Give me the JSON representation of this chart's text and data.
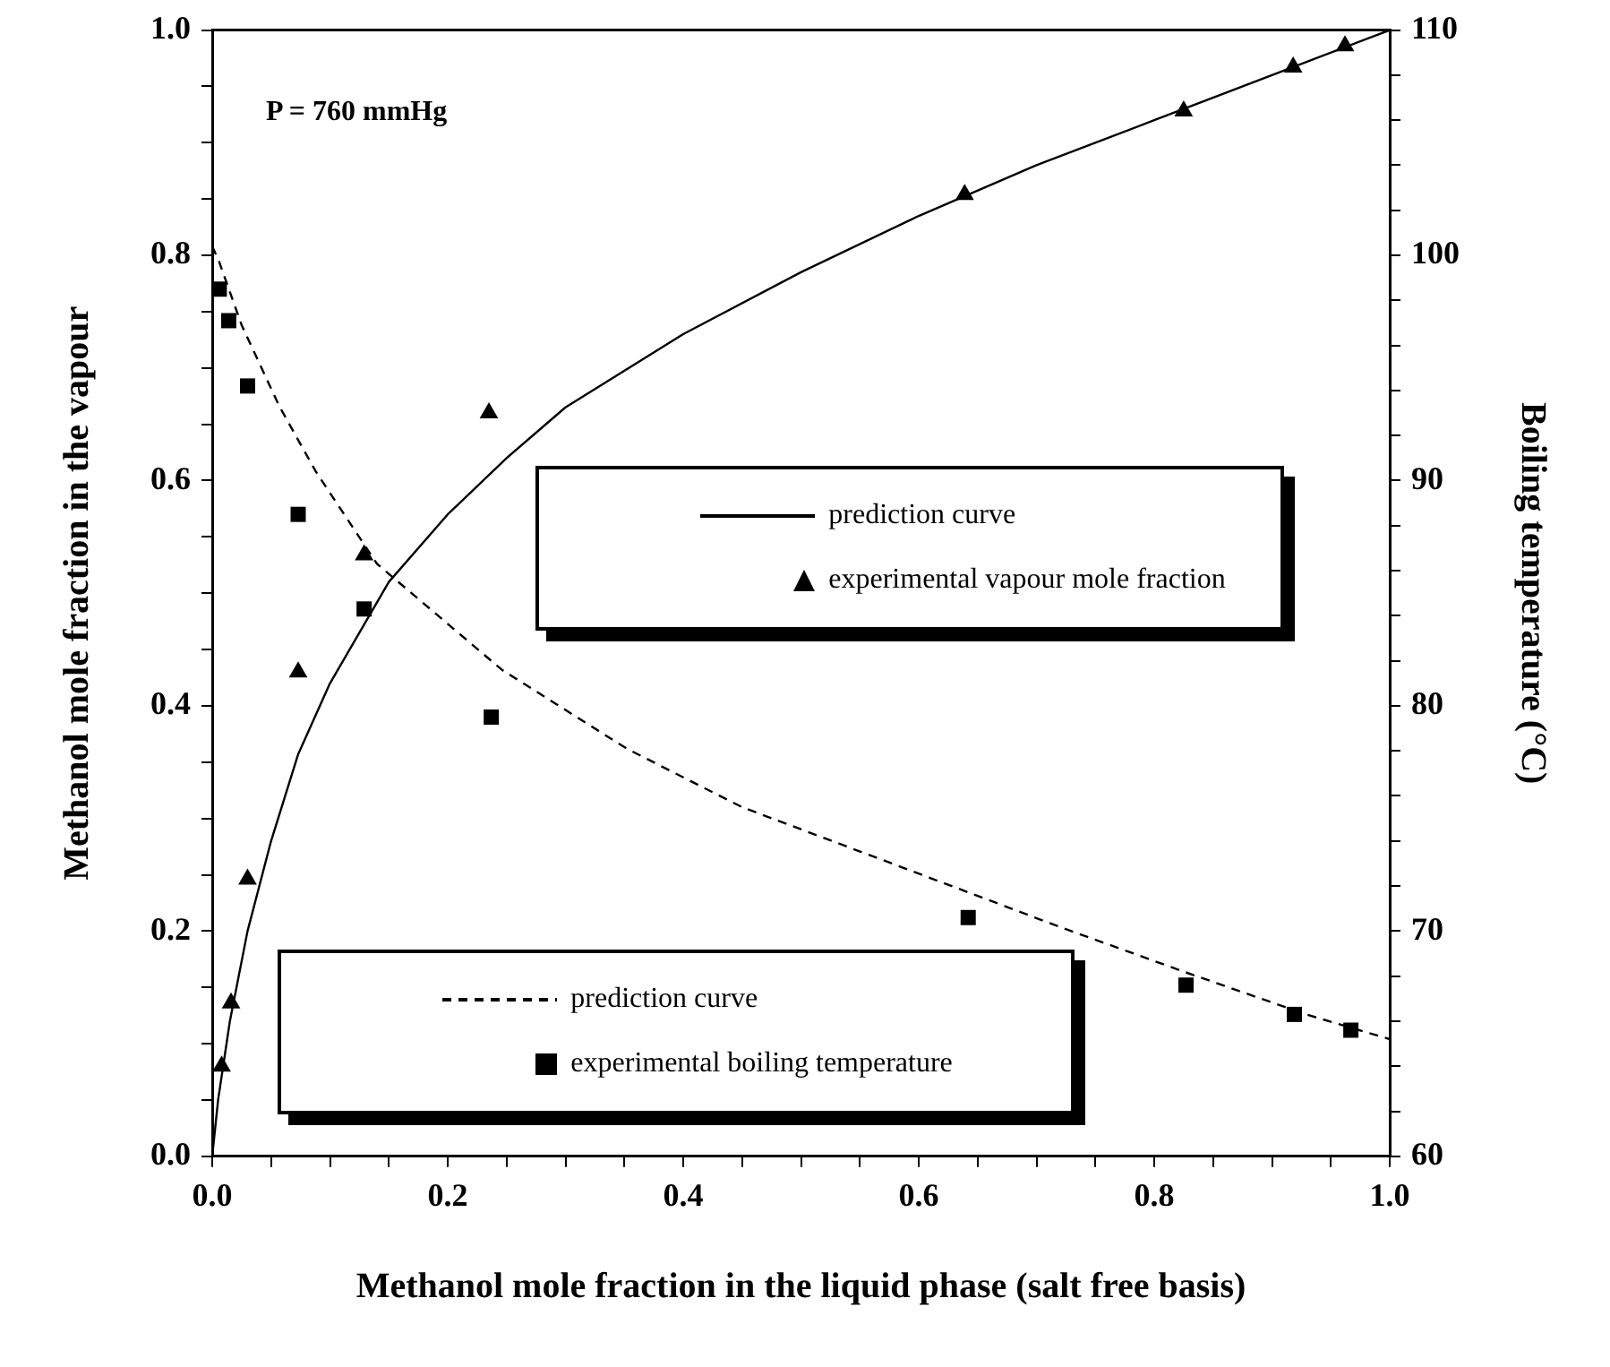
{
  "chart_data": {
    "type": "line",
    "xlabel": "Methanol mole fraction in the liquid phase (salt free basis)",
    "ylabel": "Methanol mole fraction in the vapour",
    "y2label": "Boiling temperature (°C)",
    "annotations": [
      "P = 760 mmHg"
    ],
    "xlim": [
      0,
      1
    ],
    "ylim": [
      0,
      1
    ],
    "y2lim": [
      60,
      110
    ],
    "xticks": [
      {
        "value": 0,
        "label": "0.0"
      },
      {
        "value": 0.05,
        "label": null
      },
      {
        "value": 0.1,
        "label": null
      },
      {
        "value": 0.15,
        "label": null
      },
      {
        "value": 0.2,
        "label": "0.2"
      },
      {
        "value": 0.25,
        "label": null
      },
      {
        "value": 0.3,
        "label": null
      },
      {
        "value": 0.35,
        "label": null
      },
      {
        "value": 0.4,
        "label": "0.4"
      },
      {
        "value": 0.45,
        "label": null
      },
      {
        "value": 0.5,
        "label": null
      },
      {
        "value": 0.55,
        "label": null
      },
      {
        "value": 0.6,
        "label": "0.6"
      },
      {
        "value": 0.65,
        "label": null
      },
      {
        "value": 0.7,
        "label": null
      },
      {
        "value": 0.75,
        "label": null
      },
      {
        "value": 0.8,
        "label": "0.8"
      },
      {
        "value": 0.85,
        "label": null
      },
      {
        "value": 0.9,
        "label": null
      },
      {
        "value": 0.95,
        "label": null
      },
      {
        "value": 1,
        "label": "1.0"
      }
    ],
    "yticks": [
      {
        "value": 0,
        "label": "0.0"
      },
      {
        "value": 0.05,
        "label": null
      },
      {
        "value": 0.1,
        "label": null
      },
      {
        "value": 0.15,
        "label": null
      },
      {
        "value": 0.2,
        "label": "0.2"
      },
      {
        "value": 0.25,
        "label": null
      },
      {
        "value": 0.3,
        "label": null
      },
      {
        "value": 0.35,
        "label": null
      },
      {
        "value": 0.4,
        "label": "0.4"
      },
      {
        "value": 0.45,
        "label": null
      },
      {
        "value": 0.5,
        "label": null
      },
      {
        "value": 0.55,
        "label": null
      },
      {
        "value": 0.6,
        "label": "0.6"
      },
      {
        "value": 0.65,
        "label": null
      },
      {
        "value": 0.7,
        "label": null
      },
      {
        "value": 0.75,
        "label": null
      },
      {
        "value": 0.8,
        "label": "0.8"
      },
      {
        "value": 0.85,
        "label": null
      },
      {
        "value": 0.9,
        "label": null
      },
      {
        "value": 0.95,
        "label": null
      },
      {
        "value": 1,
        "label": "1.0"
      }
    ],
    "y2ticks": [
      60,
      {
        "value": 62,
        "label": null
      },
      {
        "value": 64,
        "label": null
      },
      {
        "value": 66,
        "label": null
      },
      {
        "value": 68,
        "label": null
      },
      70,
      {
        "value": 72,
        "label": null
      },
      {
        "value": 74,
        "label": null
      },
      {
        "value": 76,
        "label": null
      },
      {
        "value": 78,
        "label": null
      },
      80,
      {
        "value": 82,
        "label": null
      },
      {
        "value": 84,
        "label": null
      },
      {
        "value": 86,
        "label": null
      },
      {
        "value": 88,
        "label": null
      },
      90,
      {
        "value": 92,
        "label": null
      },
      {
        "value": 94,
        "label": null
      },
      {
        "value": 96,
        "label": null
      },
      {
        "value": 98,
        "label": null
      },
      100,
      {
        "value": 102,
        "label": null
      },
      {
        "value": 104,
        "label": null
      },
      {
        "value": 106,
        "label": null
      },
      {
        "value": 108,
        "label": null
      },
      110
    ],
    "legend": "right",
    "grid": false,
    "series": [
      {
        "name": "prediction curve",
        "type": "line",
        "axis": "y",
        "color": "#000000",
        "marker": "none",
        "line_style": "solid",
        "x": [
          0,
          0.005,
          0.015,
          0.03,
          0.05,
          0.073,
          0.1,
          0.15,
          0.2,
          0.25,
          0.3,
          0.4,
          0.5,
          0.6,
          0.7,
          0.8,
          0.9,
          1
        ],
        "values": [
          0,
          0.05,
          0.12,
          0.2,
          0.28,
          0.357,
          0.42,
          0.51,
          0.57,
          0.62,
          0.665,
          0.73,
          0.785,
          0.835,
          0.88,
          0.92,
          0.96,
          1
        ]
      },
      {
        "name": "experimental vapour mole fraction",
        "type": "scatter",
        "axis": "y",
        "color": "#000000",
        "marker": "triangle",
        "x": [
          0.008,
          0.016,
          0.03,
          0.073,
          0.129,
          0.235,
          0.639,
          0.825,
          0.918,
          0.962
        ],
        "values": [
          0.08,
          0.136,
          0.246,
          0.43,
          0.534,
          0.66,
          0.854,
          0.928,
          0.967,
          0.986
        ]
      },
      {
        "name": "prediction curve",
        "type": "line",
        "axis": "y2",
        "color": "#000000",
        "marker": "none",
        "line_style": "dashed",
        "x": [
          0,
          0.006,
          0.025,
          0.057,
          0.088,
          0.14,
          0.246,
          0.352,
          0.45,
          0.562,
          0.719,
          0.825,
          0.929,
          1
        ],
        "values": [
          100.4,
          99.7,
          96.9,
          93.3,
          90.4,
          86.3,
          81.6,
          78.1,
          75.5,
          73.3,
          70.2,
          68.2,
          66.3,
          65.2
        ]
      },
      {
        "name": "experimental boiling temperature",
        "type": "scatter",
        "axis": "y2",
        "color": "#000000",
        "marker": "square",
        "x": [
          0.006,
          0.014,
          0.03,
          0.073,
          0.129,
          0.237,
          0.642,
          0.827,
          0.919,
          0.967
        ],
        "values": [
          98.5,
          97.1,
          94.2,
          88.5,
          84.3,
          79.5,
          70.6,
          67.6,
          66.3,
          65.6
        ]
      }
    ]
  }
}
